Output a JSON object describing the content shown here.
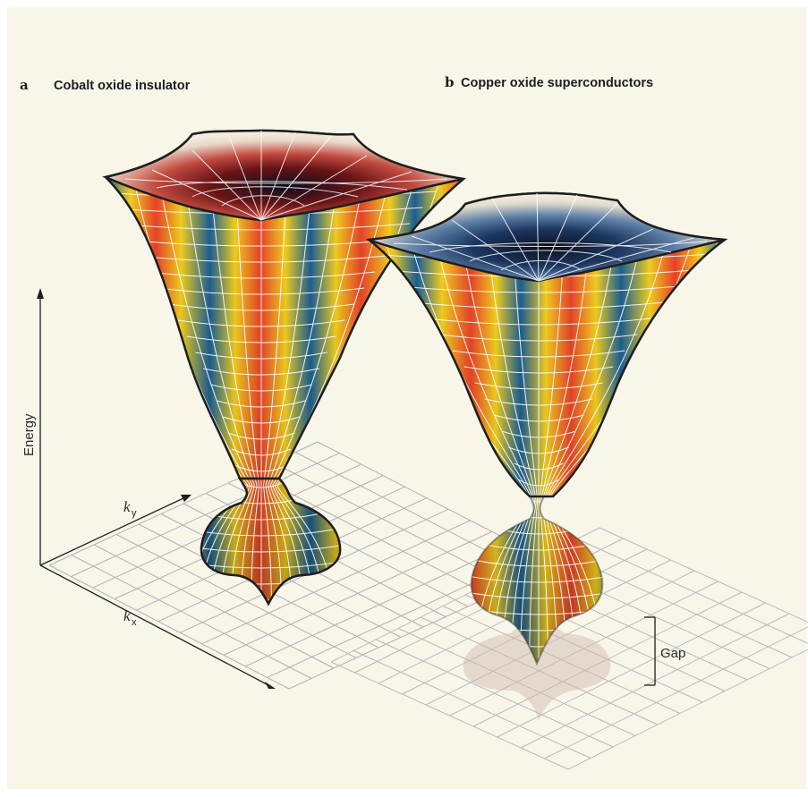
{
  "panel_a": {
    "letter": "a",
    "title": "Cobalt oxide insulator"
  },
  "panel_b": {
    "letter": "b",
    "title": "Copper oxide superconductors"
  },
  "axes": {
    "energy": "Energy",
    "ky_symbol": "k",
    "ky_sub": "y",
    "kx_symbol": "k",
    "kx_sub": "x"
  },
  "gap_label": "Gap",
  "colors": {
    "background": "#f8f5e9",
    "band_blue": "#1a5f95",
    "band_yellow": "#f2cf1e",
    "band_red": "#e8432a",
    "grid": "#b0b0b0",
    "outline": "#1e1e1e"
  }
}
